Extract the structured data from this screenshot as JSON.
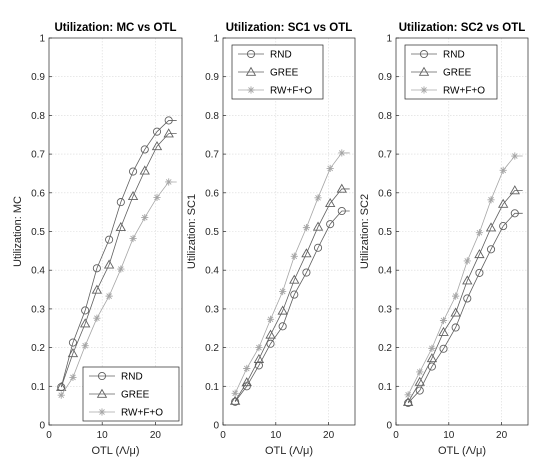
{
  "chart_data": [
    {
      "type": "line",
      "title": "Utilization: MC vs OTL",
      "xlabel": "OTL (Λ/μ)",
      "ylabel": "Utilization: MC",
      "xlim": [
        0,
        25
      ],
      "ylim": [
        0,
        1
      ],
      "xticks": [
        0,
        10,
        20
      ],
      "yticks": [
        0,
        0.1,
        0.2,
        0.3,
        0.4,
        0.5,
        0.6,
        0.7,
        0.8,
        0.9,
        1
      ],
      "grid": true,
      "legend_position": "bottom-right",
      "x": [
        2.3,
        4.5,
        6.8,
        9.0,
        11.3,
        13.5,
        15.8,
        18.0,
        20.3,
        22.5,
        24.0
      ],
      "series": [
        {
          "name": "RND",
          "marker": "circle",
          "color": "#606060",
          "values": [
            0.098,
            0.213,
            0.296,
            0.405,
            0.479,
            0.576,
            0.655,
            0.712,
            0.758,
            0.787,
            0.787
          ]
        },
        {
          "name": "GREE",
          "marker": "triangle",
          "color": "#606060",
          "values": [
            0.098,
            0.185,
            0.262,
            0.349,
            0.414,
            0.511,
            0.591,
            0.657,
            0.72,
            0.753,
            0.753
          ]
        },
        {
          "name": "RW+F+O",
          "marker": "asterisk",
          "color": "#a6a6a6",
          "values": [
            0.077,
            0.123,
            0.205,
            0.276,
            0.333,
            0.403,
            0.482,
            0.536,
            0.588,
            0.628,
            0.628
          ]
        }
      ]
    },
    {
      "type": "line",
      "title": "Utilization: SC1 vs OTL",
      "xlabel": "OTL (Λ/μ)",
      "ylabel": "Utilization: SC1",
      "xlim": [
        0,
        25
      ],
      "ylim": [
        0,
        1
      ],
      "xticks": [
        0,
        10,
        20
      ],
      "yticks": [
        0,
        0.1,
        0.2,
        0.3,
        0.4,
        0.5,
        0.6,
        0.7,
        0.8,
        0.9,
        1
      ],
      "grid": true,
      "legend_position": "top-left",
      "x": [
        2.3,
        4.5,
        6.8,
        9.0,
        11.3,
        13.5,
        15.8,
        18.0,
        20.3,
        22.5,
        24.0
      ],
      "series": [
        {
          "name": "RND",
          "marker": "circle",
          "color": "#606060",
          "values": [
            0.06,
            0.1,
            0.154,
            0.21,
            0.255,
            0.337,
            0.394,
            0.458,
            0.519,
            0.553,
            0.553
          ]
        },
        {
          "name": "GREE",
          "marker": "triangle",
          "color": "#606060",
          "values": [
            0.062,
            0.11,
            0.17,
            0.233,
            0.295,
            0.375,
            0.443,
            0.512,
            0.573,
            0.61,
            0.61
          ]
        },
        {
          "name": "RW+F+O",
          "marker": "asterisk",
          "color": "#a6a6a6",
          "values": [
            0.082,
            0.146,
            0.2,
            0.273,
            0.345,
            0.436,
            0.51,
            0.587,
            0.663,
            0.703,
            0.703
          ]
        }
      ]
    },
    {
      "type": "line",
      "title": "Utilization: SC2 vs OTL",
      "xlabel": "OTL (Λ/μ)",
      "ylabel": "Utilization: SC2",
      "xlim": [
        0,
        25
      ],
      "ylim": [
        0,
        1
      ],
      "xticks": [
        0,
        10,
        20
      ],
      "yticks": [
        0,
        0.1,
        0.2,
        0.3,
        0.4,
        0.5,
        0.6,
        0.7,
        0.8,
        0.9,
        1
      ],
      "grid": true,
      "legend_position": "top-left",
      "x": [
        2.3,
        4.5,
        6.8,
        9.0,
        11.3,
        13.5,
        15.8,
        18.0,
        20.3,
        22.5,
        24.0
      ],
      "series": [
        {
          "name": "RND",
          "marker": "circle",
          "color": "#606060",
          "values": [
            0.057,
            0.089,
            0.151,
            0.197,
            0.252,
            0.327,
            0.393,
            0.454,
            0.514,
            0.547,
            0.547
          ]
        },
        {
          "name": "GREE",
          "marker": "triangle",
          "color": "#606060",
          "values": [
            0.059,
            0.111,
            0.172,
            0.24,
            0.29,
            0.373,
            0.441,
            0.51,
            0.571,
            0.606,
            0.606
          ]
        },
        {
          "name": "RW+F+O",
          "marker": "asterisk",
          "color": "#a6a6a6",
          "values": [
            0.078,
            0.137,
            0.198,
            0.27,
            0.333,
            0.424,
            0.497,
            0.582,
            0.658,
            0.695,
            0.695
          ]
        }
      ]
    }
  ]
}
